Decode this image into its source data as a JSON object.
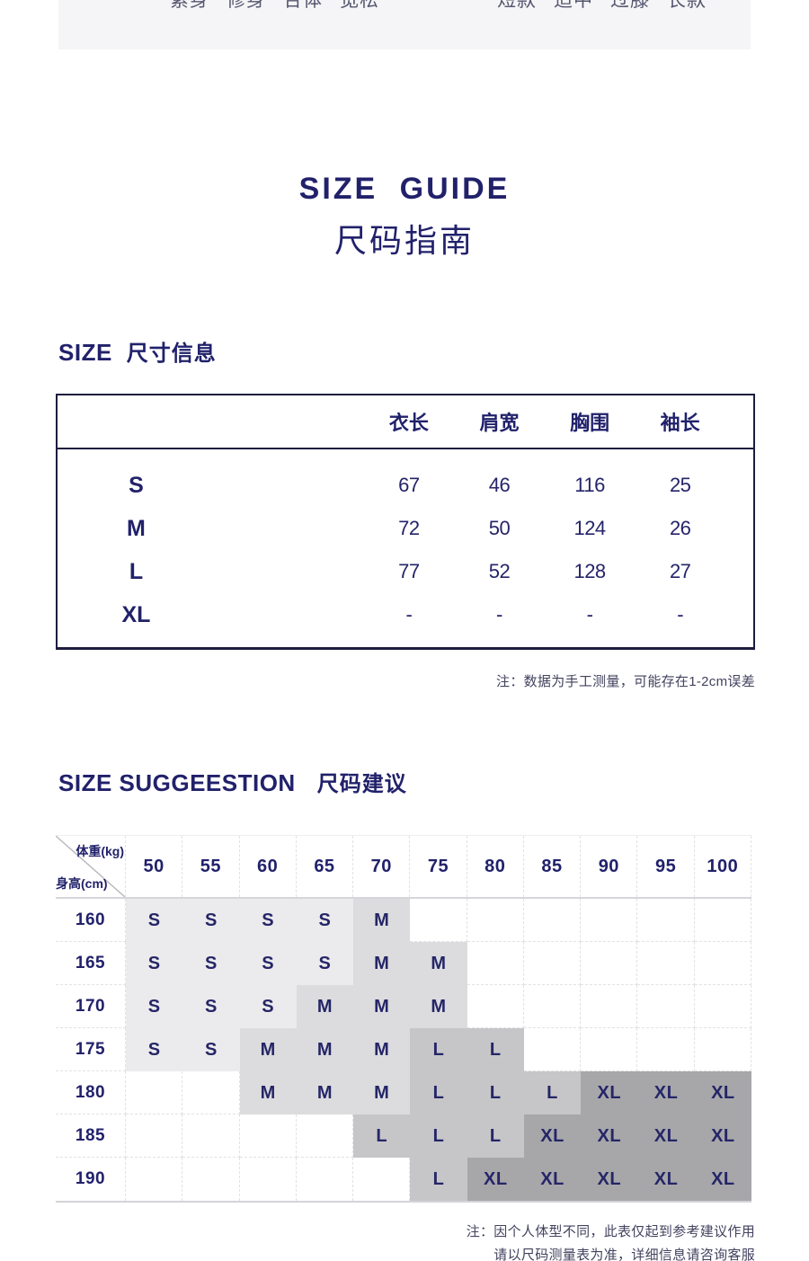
{
  "fit_bar": {
    "fit_labels": [
      "紧身",
      "修身",
      "合体",
      "宽松"
    ],
    "length_labels": [
      "短款",
      "适中",
      "过膝",
      "长款"
    ]
  },
  "header": {
    "title_en": "SIZE GUIDE",
    "title_cn": "尺码指南"
  },
  "size_info": {
    "heading_en": "SIZE",
    "heading_cn": "尺寸信息",
    "columns": [
      "衣长",
      "肩宽",
      "胸围",
      "袖长"
    ],
    "rows": [
      {
        "size": "S",
        "values": [
          "67",
          "46",
          "116",
          "25"
        ]
      },
      {
        "size": "M",
        "values": [
          "72",
          "50",
          "124",
          "26"
        ]
      },
      {
        "size": "L",
        "values": [
          "77",
          "52",
          "128",
          "27"
        ]
      },
      {
        "size": "XL",
        "values": [
          "-",
          "-",
          "-",
          "-"
        ]
      }
    ],
    "note": "注：数据为手工测量，可能存在1-2cm误差"
  },
  "size_suggestion": {
    "heading_en": "SIZE SUGGEESTION",
    "heading_cn": "尺码建议",
    "corner_top": "体重(kg)",
    "corner_bottom": "身高(cm)",
    "weights": [
      "50",
      "55",
      "60",
      "65",
      "70",
      "75",
      "80",
      "85",
      "90",
      "95",
      "100"
    ],
    "heights": [
      "160",
      "165",
      "170",
      "175",
      "180",
      "185",
      "190"
    ],
    "matrix": [
      [
        "S",
        "S",
        "S",
        "S",
        "M",
        "",
        "",
        "",
        "",
        "",
        ""
      ],
      [
        "S",
        "S",
        "S",
        "S",
        "M",
        "M",
        "",
        "",
        "",
        "",
        ""
      ],
      [
        "S",
        "S",
        "S",
        "M",
        "M",
        "M",
        "",
        "",
        "",
        "",
        ""
      ],
      [
        "S",
        "S",
        "M",
        "M",
        "M",
        "L",
        "L",
        "",
        "",
        "",
        ""
      ],
      [
        "",
        "",
        "M",
        "M",
        "M",
        "L",
        "L",
        "L",
        "XL",
        "XL",
        "XL"
      ],
      [
        "",
        "",
        "",
        "",
        "L",
        "L",
        "L",
        "XL",
        "XL",
        "XL",
        "XL"
      ],
      [
        "",
        "",
        "",
        "",
        "",
        "L",
        "XL",
        "XL",
        "XL",
        "XL",
        "XL"
      ]
    ],
    "cell_colors": {
      "S": "#ebebed",
      "M": "#dcdcdf",
      "L": "#c6c6c9",
      "XL": "#a7a7aa"
    },
    "note_line1": "注：因个人体型不同，此表仅起到参考建议作用",
    "note_line2": "请以尺码测量表为准，详细信息请咨询客服"
  }
}
